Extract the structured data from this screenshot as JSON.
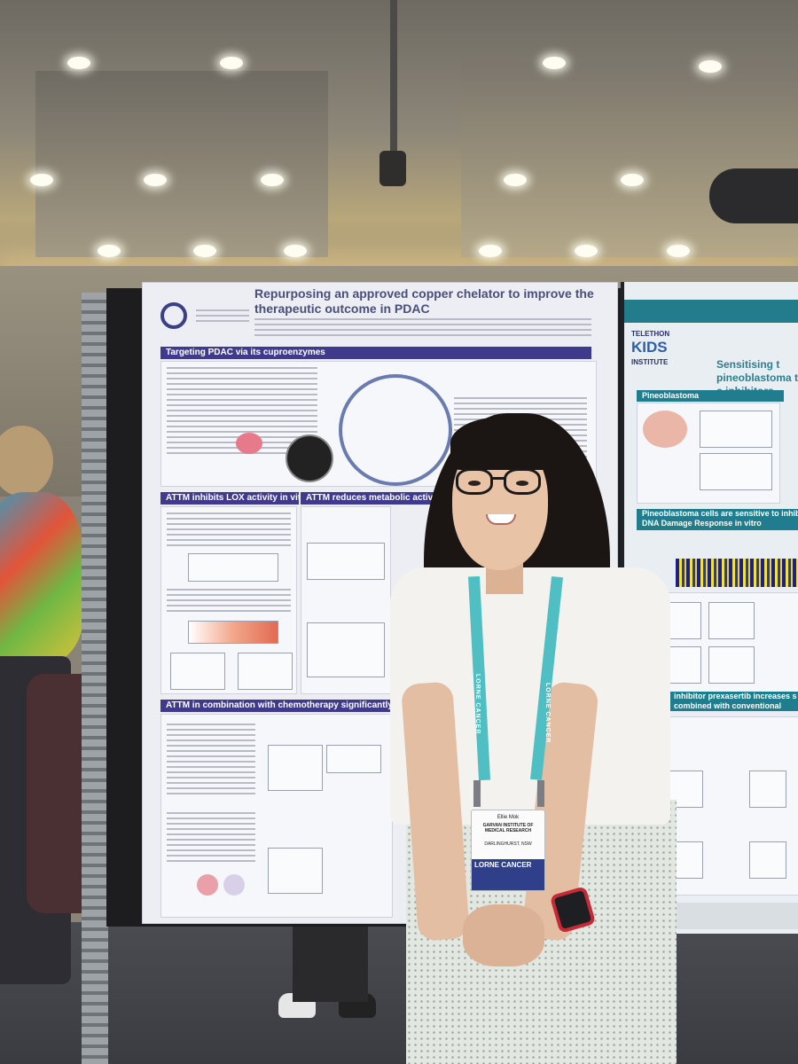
{
  "scene": {
    "description_colors": {
      "ceiling": "#8d8779",
      "poster_header": "#3f3a8c",
      "lanyard": "#4fbfc3",
      "teal_poster": "#227c8c"
    }
  },
  "poster_main": {
    "title": "Repurposing an approved copper chelator to improve the therapeutic outcome in PDAC",
    "sections": [
      "Targeting PDAC via its cuproenzymes",
      "ATTM inhibits LOX activity in vitro",
      "ATTM reduces metabolic activity of P",
      "ATTM in combination with chemotherapy significantly extends P"
    ]
  },
  "poster_right": {
    "org_small": "TELETHON",
    "org_big": "KIDS",
    "org_sub": "INSTITUTE",
    "title": "Sensitising t pineoblastoma to c inhibitors",
    "sections": [
      "Pineoblastoma",
      "Pineoblastoma cells are sensitive to inhibi DNA Damage Response in vitro",
      "inhibitor prexasertib increases s combined with conventional chemoth"
    ]
  },
  "lanyard": {
    "text": "LORNE CANCER"
  },
  "badge": {
    "name": "Ellie Mok",
    "org": "GARVAN INSTITUTE OF MEDICAL RESEARCH",
    "location": "DARLINGHURST, NSW",
    "event": "LORNE CANCER"
  }
}
